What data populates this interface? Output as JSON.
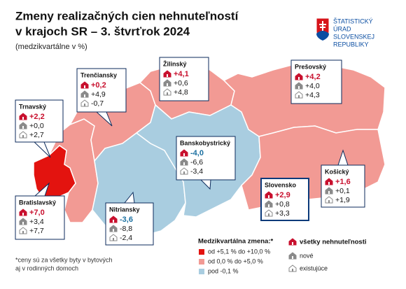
{
  "header": {
    "title_lines": [
      "Zmeny realizačných cien nehnuteľností",
      "v krajoch SR – 3. štvrťrok 2024"
    ],
    "subtitle": "(medzikvartálne v %)"
  },
  "logo": {
    "lines": [
      "ŠTATISTICKÝ",
      "ÚRAD",
      "SLOVENSKEJ",
      "REPUBLIKY"
    ]
  },
  "regions": [
    {
      "name": "Trnavský",
      "all": "+2,2",
      "new": "+0,0",
      "existing": "+2,7"
    },
    {
      "name": "Trenčiansky",
      "all": "+0,2",
      "new": "+4,9",
      "existing": "-0,7"
    },
    {
      "name": "Žilinský",
      "all": "+4,1",
      "new": "+0,6",
      "existing": "+4,8"
    },
    {
      "name": "Prešovský",
      "all": "+4,2",
      "new": "+4,0",
      "existing": "+4,3"
    },
    {
      "name": "Banskobystrický",
      "all": "-4,0",
      "new": "-6,6",
      "existing": "-3,4"
    },
    {
      "name": "Bratislavský",
      "all": "+7,0",
      "new": "+3,4",
      "existing": "+7,7"
    },
    {
      "name": "Nitriansky",
      "all": "-3,6",
      "new": "-8,8",
      "existing": "-2,4"
    },
    {
      "name": "Slovensko",
      "all": "+2,9",
      "new": "+0,8",
      "existing": "+3,3"
    },
    {
      "name": "Košický",
      "all": "+1,6",
      "new": "+0,1",
      "existing": "+1,9"
    }
  ],
  "legend": {
    "title": "Medzikvartálna zmena:*",
    "ranges": [
      "od +5,1 % do +10,0 %",
      "od 0,0 % do +5,0 %",
      "pod -0,1 %"
    ],
    "types": [
      "všetky nehnuteľnosti",
      "nové",
      "existujúce"
    ]
  },
  "footnote": [
    "*ceny sú za všetky byty v bytových",
    "aj v rodinných domoch"
  ]
}
